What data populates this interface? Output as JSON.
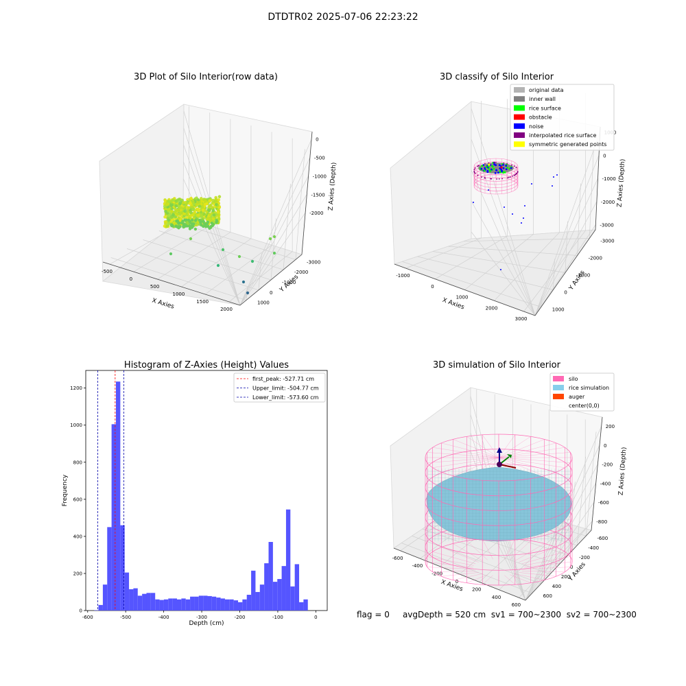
{
  "figure": {
    "suptitle": "DTDTR02 2025-07-06 22:23:22",
    "footer": {
      "flag": "flag = 0",
      "avg_depth": "avgDepth = 520 cm",
      "sv1": "sv1 = 700~2300",
      "sv2": "sv2 = 700~2300"
    }
  },
  "chart_data": [
    {
      "type": "scatter",
      "projection": "3d",
      "title": "3D Plot of Silo Interior(row data)",
      "xlabel": "X Axies",
      "ylabel": "Y Axies",
      "zlabel": "Z Axies (Depth)",
      "x_ticks": [
        "-500",
        "0",
        "500",
        "1000",
        "1500",
        "2000"
      ],
      "y_ticks": [
        "1000",
        "0",
        "-1000",
        "-2000",
        "-3000"
      ],
      "z_ticks": [
        "0",
        "-500",
        "-1000",
        "-1500",
        "-2000"
      ],
      "xlim": [
        -700,
        2200
      ],
      "ylim": [
        1300,
        -3300
      ],
      "zlim": [
        -2300,
        100
      ],
      "grid": true,
      "colormap": "viridis",
      "cluster": {
        "x": [
          -550,
          50
        ],
        "y": [
          -200,
          900
        ],
        "z": [
          -650,
          -50
        ]
      },
      "outliers": [
        {
          "x": 700,
          "y": 200,
          "z": -1000
        },
        {
          "x": 1800,
          "y": -400,
          "z": -700
        },
        {
          "x": 1900,
          "y": -400,
          "z": -500
        },
        {
          "x": 1100,
          "y": -700,
          "z": -1200
        },
        {
          "x": 950,
          "y": -300,
          "z": -1300
        },
        {
          "x": 1000,
          "y": -1200,
          "z": -1800
        },
        {
          "x": 1400,
          "y": -1800,
          "z": -2000
        },
        {
          "x": 100,
          "y": 300,
          "z": -1100
        },
        {
          "x": 1700,
          "y": -2900,
          "z": -2900
        }
      ]
    },
    {
      "type": "scatter",
      "projection": "3d",
      "title": "3D classify of Silo Interior",
      "xlabel": "X Axies",
      "ylabel": "Y Axies",
      "zlabel": "Z Axies (Depth)",
      "x_ticks": [
        "-1000",
        "0",
        "1000",
        "2000",
        "3000"
      ],
      "y_ticks": [
        "1000",
        "0",
        "-1000",
        "-2000",
        "-3000"
      ],
      "z_ticks": [
        "1000",
        "0",
        "-1000",
        "-2000",
        "-3000"
      ],
      "legend": [
        {
          "label": "original data",
          "color": "#b3b3b3"
        },
        {
          "label": "inner wall",
          "color": "#808080"
        },
        {
          "label": "rice surface",
          "color": "#00ff00"
        },
        {
          "label": "obstacle",
          "color": "#ff0000"
        },
        {
          "label": "noise",
          "color": "#0000ff"
        },
        {
          "label": "interpolated rice surface",
          "color": "#800080"
        },
        {
          "label": "symmetric generated points",
          "color": "#ffff00"
        }
      ],
      "legend_loc": "upper-right",
      "grid": true
    },
    {
      "type": "bar",
      "title": "Histogram of Z-Axies (Height) Values",
      "xlabel": "Depth (cm)",
      "ylabel": "Frequency",
      "xlim": [
        -605,
        30
      ],
      "ylim": [
        0,
        1295
      ],
      "x_ticks": [
        -600,
        -500,
        -400,
        -300,
        -200,
        -100,
        0
      ],
      "y_ticks": [
        0,
        200,
        400,
        600,
        800,
        1000,
        1200
      ],
      "bin_start": -583,
      "bin_width": 11.47,
      "values": [
        2,
        30,
        140,
        450,
        1005,
        1235,
        460,
        205,
        115,
        120,
        80,
        90,
        95,
        95,
        60,
        57,
        60,
        65,
        65,
        60,
        65,
        60,
        75,
        75,
        80,
        80,
        78,
        75,
        70,
        65,
        60,
        60,
        55,
        45,
        60,
        85,
        215,
        100,
        140,
        255,
        370,
        155,
        170,
        240,
        545,
        130,
        250,
        45,
        60
      ],
      "bar_color": "#5555ff",
      "lines": [
        {
          "label": "first_peak: -527.71 cm",
          "x": -527.71,
          "color": "#ff0000"
        },
        {
          "label": "Upper_limit: -504.77 cm",
          "x": -504.77,
          "color": "#0000aa"
        },
        {
          "label": "Lower_limit: -573.60 cm",
          "x": -573.6,
          "color": "#0000aa"
        }
      ],
      "legend_loc": "upper-right"
    },
    {
      "type": "surface",
      "projection": "3d",
      "title": "3D simulation of Silo Interior",
      "xlabel": "X Axies",
      "ylabel": "Y Axies",
      "zlabel": "Z Axies (Depth)",
      "x_ticks": [
        "-600",
        "-400",
        "-200",
        "0",
        "200",
        "400",
        "600"
      ],
      "y_ticks": [
        "600",
        "400",
        "200",
        "0",
        "-200",
        "-400",
        "-600"
      ],
      "z_ticks": [
        "200",
        "0",
        "-200",
        "-400",
        "-600",
        "-800"
      ],
      "legend": [
        {
          "label": "silo",
          "color": "#ff69b4"
        },
        {
          "label": "rice simulation",
          "color": "#87ceeb"
        },
        {
          "label": "auger",
          "color": "#ff4500"
        },
        {
          "label": "center(0,0)",
          "color": ""
        }
      ],
      "legend_loc": "upper-right",
      "silo_color": "#ff69b4",
      "rice_color": "#87c5da",
      "grid": true
    }
  ]
}
